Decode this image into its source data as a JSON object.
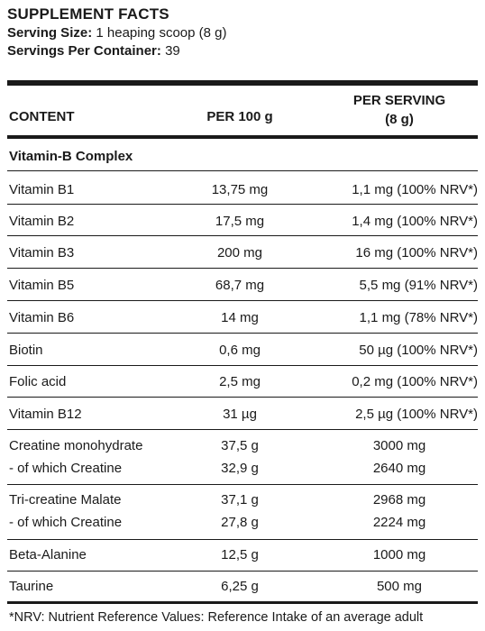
{
  "title": "SUPPLEMENT FACTS",
  "serving_size": {
    "label": "Serving Size:",
    "value": "1 heaping scoop (8 g)"
  },
  "servings_per_container": {
    "label": "Servings Per Container:",
    "value": "39"
  },
  "columns": {
    "content": "CONTENT",
    "per100": "PER 100 g",
    "perserving_line1": "PER SERVING",
    "perserving_line2": "(8 g)"
  },
  "section_heading": "Vitamin-B Complex",
  "rows": [
    {
      "name": "Vitamin B1",
      "per100": "13,75 mg",
      "serving": "1,1 mg (100% NRV*)"
    },
    {
      "name": "Vitamin B2",
      "per100": "17,5 mg",
      "serving": "1,4 mg (100% NRV*)"
    },
    {
      "name": "Vitamin B3",
      "per100": "200 mg",
      "serving": "16 mg (100% NRV*)"
    },
    {
      "name": "Vitamin B5",
      "per100": "68,7 mg",
      "serving": "5,5 mg (91% NRV*)"
    },
    {
      "name": "Vitamin B6",
      "per100": "14 mg",
      "serving": "1,1 mg (78% NRV*)"
    },
    {
      "name": "Biotin",
      "per100": "0,6 mg",
      "serving": "50 µg (100% NRV*)"
    },
    {
      "name": "Folic acid",
      "per100": "2,5 mg",
      "serving": "0,2 mg (100% NRV*)"
    },
    {
      "name": "Vitamin B12",
      "per100": "31 µg",
      "serving": "2,5 µg (100% NRV*)"
    }
  ],
  "multi_rows": [
    {
      "name1": "Creatine monohydrate",
      "per100_1": "37,5 g",
      "serving1": "3000 mg",
      "name2": "- of which Creatine",
      "per100_2": "32,9 g",
      "serving2": "2640 mg"
    },
    {
      "name1": "Tri-creatine Malate",
      "per100_1": "37,1 g",
      "serving1": "2968 mg",
      "name2": "- of which Creatine",
      "per100_2": "27,8 g",
      "serving2": "2224 mg"
    }
  ],
  "tail_rows": [
    {
      "name": "Beta-Alanine",
      "per100": "12,5 g",
      "serving": "1000 mg"
    },
    {
      "name": "Taurine",
      "per100": "6,25 g",
      "serving": "500 mg"
    }
  ],
  "footnote": "*NRV: Nutrient Reference Values: Reference Intake of an average adult"
}
